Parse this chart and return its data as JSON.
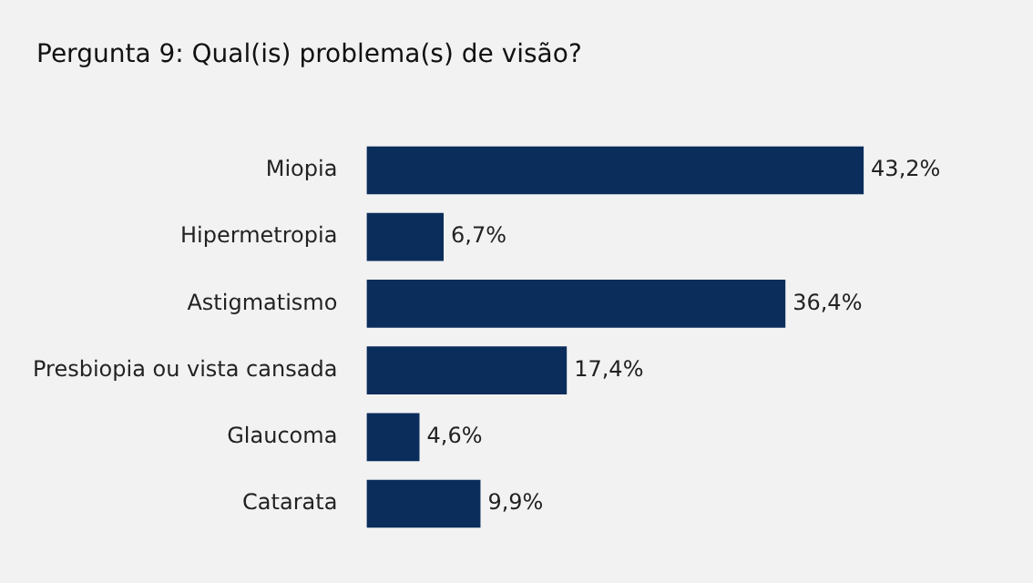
{
  "chart_data": {
    "type": "bar",
    "orientation": "horizontal",
    "title": "Pergunta 9: Qual(is) problema(s) de visão?",
    "categories": [
      "Miopia",
      "Hipermetropia",
      "Astigmatismo",
      "Presbiopia ou vista cansada",
      "Glaucoma",
      "Catarata"
    ],
    "values": [
      43.2,
      6.7,
      36.4,
      17.4,
      4.6,
      9.9
    ],
    "value_labels": [
      "43,2%",
      "6,7%",
      "36,4%",
      "17,4%",
      "4,6%",
      "9,9%"
    ],
    "color": "#0b2d5c",
    "tick_labels": "y"
  }
}
